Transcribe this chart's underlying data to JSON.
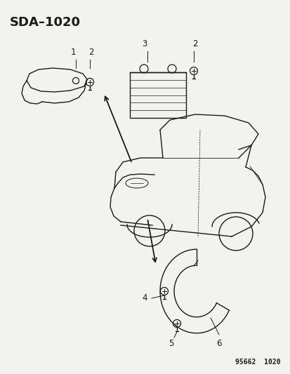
{
  "title": "SDA–1020",
  "footer": "95662  1020",
  "background_color": "#f2f2ee",
  "line_color": "#1a1a1a",
  "title_fontsize": 13,
  "footer_fontsize": 7,
  "label_fontsize": 8.5
}
